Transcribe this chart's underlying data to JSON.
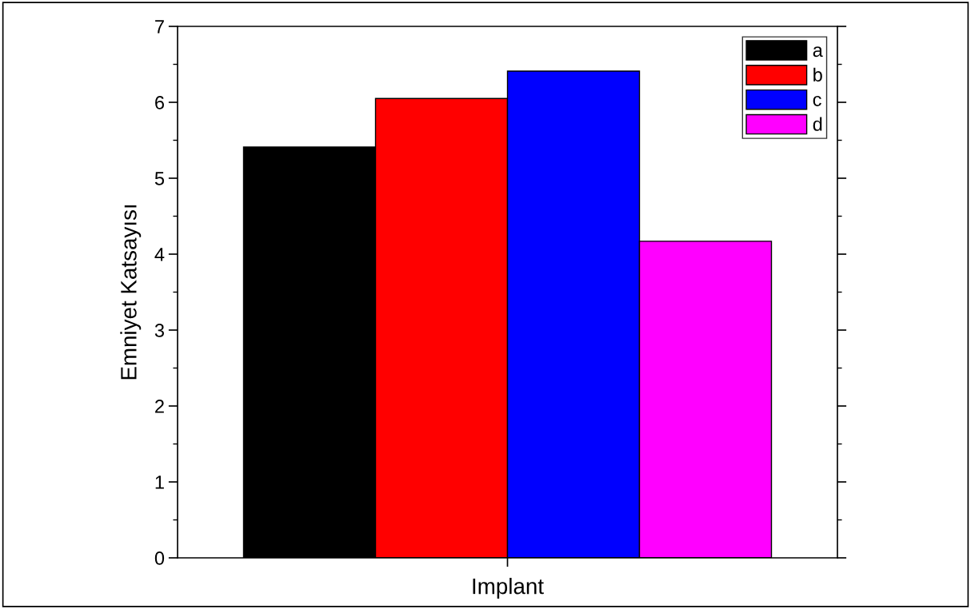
{
  "chart_data": {
    "type": "bar",
    "ylabel": "Emniyet Katsayısı",
    "categories": [
      "Implant"
    ],
    "series": [
      {
        "name": "a",
        "color": "#000000",
        "values": [
          5.41
        ]
      },
      {
        "name": "b",
        "color": "#ff0000",
        "values": [
          6.05
        ]
      },
      {
        "name": "c",
        "color": "#0000ff",
        "values": [
          6.41
        ]
      },
      {
        "name": "d",
        "color": "#ff00ff",
        "values": [
          4.17
        ]
      }
    ],
    "ylim": [
      0,
      7
    ],
    "yticks": [
      0,
      1,
      2,
      3,
      4,
      5,
      6,
      7
    ],
    "grid": false,
    "legend": "top right"
  }
}
